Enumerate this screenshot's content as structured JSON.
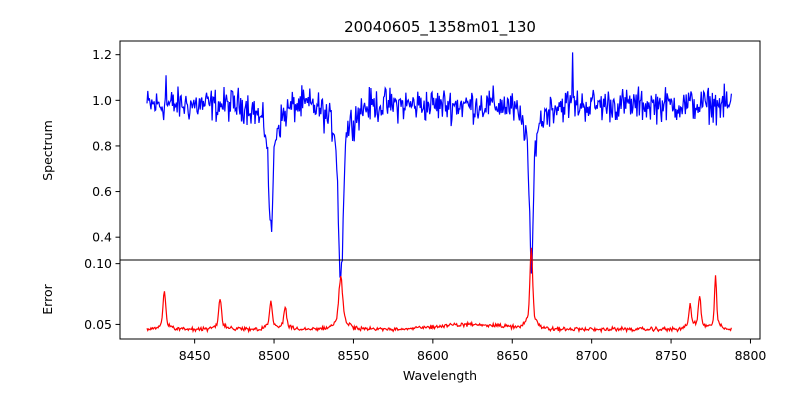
{
  "chart_data": {
    "type": "line",
    "title": "20040605_1358m01_130",
    "xlabel": "Wavelength",
    "xlim": [
      8403,
      8806
    ],
    "xticks": [
      8450,
      8500,
      8550,
      8600,
      8650,
      8700,
      8750,
      8800
    ],
    "panels": [
      {
        "name": "spectrum",
        "ylabel": "Spectrum",
        "ylim": [
          0.3,
          1.26
        ],
        "yticks": [
          0.4,
          0.6,
          0.8,
          1.0,
          1.2
        ],
        "ytick_decimals": 1,
        "color": "#0000ff",
        "x_range": [
          8420,
          8788
        ],
        "baseline": 0.98,
        "noise": 0.045,
        "features": [
          {
            "x": 8498,
            "depth": 0.45,
            "width": 1.2
          },
          {
            "x": 8542,
            "depth": 0.65,
            "width": 1.4
          },
          {
            "x": 8662,
            "depth": 0.62,
            "width": 1.2
          }
        ],
        "spikes": [
          {
            "x": 8432,
            "value": 1.11
          },
          {
            "x": 8688,
            "value": 1.21
          }
        ]
      },
      {
        "name": "error",
        "ylabel": "Error",
        "ylim": [
          0.038,
          0.103
        ],
        "yticks": [
          0.05,
          0.1
        ],
        "ytick_decimals": 2,
        "color": "#ff0000",
        "x_range": [
          8420,
          8788
        ],
        "baseline": 0.046,
        "noise": 0.0015,
        "features": [
          {
            "x": 8431,
            "height": 0.026,
            "width": 0.8
          },
          {
            "x": 8466,
            "height": 0.021,
            "width": 0.8
          },
          {
            "x": 8498,
            "height": 0.019,
            "width": 0.8
          },
          {
            "x": 8507,
            "height": 0.015,
            "width": 0.8
          },
          {
            "x": 8542,
            "height": 0.035,
            "width": 1.2
          },
          {
            "x": 8662,
            "height": 0.056,
            "width": 0.8
          },
          {
            "x": 8762,
            "height": 0.016,
            "width": 0.8
          },
          {
            "x": 8768,
            "height": 0.022,
            "width": 0.8
          },
          {
            "x": 8778,
            "height": 0.037,
            "width": 0.6
          }
        ]
      }
    ]
  }
}
